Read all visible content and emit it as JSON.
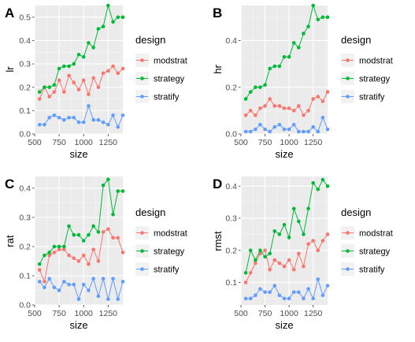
{
  "chart_data": [
    {
      "type": "line",
      "panel_label": "A",
      "xlabel": "size",
      "ylabel": "lr",
      "xlim": [
        500,
        1400
      ],
      "ylim": [
        0,
        0.55
      ],
      "xticks": [
        500,
        750,
        1000,
        1250
      ],
      "xtick_labels": [
        "500",
        "750",
        "1000",
        "1250"
      ],
      "yticks": [
        0.0,
        0.1,
        0.2,
        0.3,
        0.4,
        0.5
      ],
      "ytick_labels": [
        "0.0",
        "0.1",
        "0.2",
        "0.3",
        "0.4",
        "0.5"
      ],
      "x": [
        550,
        600,
        650,
        700,
        750,
        800,
        850,
        900,
        950,
        1000,
        1050,
        1100,
        1150,
        1200,
        1250,
        1300,
        1350,
        1400
      ],
      "series": [
        {
          "name": "modstrat",
          "color": "#F8766D",
          "values": [
            0.15,
            0.2,
            0.16,
            0.18,
            0.23,
            0.18,
            0.25,
            0.22,
            0.19,
            0.23,
            0.17,
            0.24,
            0.2,
            0.26,
            0.27,
            0.29,
            0.26,
            0.28
          ]
        },
        {
          "name": "strategy",
          "color": "#00BA38",
          "values": [
            0.18,
            0.2,
            0.2,
            0.21,
            0.28,
            0.29,
            0.29,
            0.3,
            0.34,
            0.33,
            0.39,
            0.37,
            0.45,
            0.46,
            0.55,
            0.48,
            0.5,
            0.5
          ]
        },
        {
          "name": "stratify",
          "color": "#619CFF",
          "values": [
            0.04,
            0.04,
            0.07,
            0.08,
            0.07,
            0.06,
            0.07,
            0.07,
            0.05,
            0.05,
            0.12,
            0.06,
            0.06,
            0.05,
            0.04,
            0.08,
            0.03,
            0.08
          ]
        }
      ],
      "legend": {
        "title": "design",
        "position": "right"
      }
    },
    {
      "type": "line",
      "panel_label": "B",
      "xlabel": "size",
      "ylabel": "hr",
      "xlim": [
        500,
        1400
      ],
      "ylim": [
        0,
        0.55
      ],
      "xticks": [
        500,
        750,
        1000,
        1250
      ],
      "xtick_labels": [
        "500",
        "750",
        "1000",
        "1250"
      ],
      "yticks": [
        0.0,
        0.2,
        0.4
      ],
      "ytick_labels": [
        "0.0",
        "0.2",
        "0.4"
      ],
      "x": [
        550,
        600,
        650,
        700,
        750,
        800,
        850,
        900,
        950,
        1000,
        1050,
        1100,
        1150,
        1200,
        1250,
        1300,
        1350,
        1400
      ],
      "series": [
        {
          "name": "modstrat",
          "color": "#F8766D",
          "values": [
            0.08,
            0.1,
            0.08,
            0.11,
            0.12,
            0.15,
            0.12,
            0.12,
            0.11,
            0.11,
            0.1,
            0.12,
            0.08,
            0.1,
            0.15,
            0.16,
            0.14,
            0.18
          ]
        },
        {
          "name": "strategy",
          "color": "#00BA38",
          "values": [
            0.15,
            0.18,
            0.2,
            0.2,
            0.21,
            0.28,
            0.29,
            0.29,
            0.33,
            0.33,
            0.39,
            0.37,
            0.43,
            0.46,
            0.55,
            0.49,
            0.5,
            0.5
          ]
        },
        {
          "name": "stratify",
          "color": "#619CFF",
          "values": [
            0.01,
            0.01,
            0.02,
            0.04,
            0.02,
            0.01,
            0.03,
            0.04,
            0.02,
            0.02,
            0.04,
            0.01,
            0.01,
            0.01,
            0.03,
            0.01,
            0.07,
            0.02
          ]
        }
      ],
      "legend": {
        "title": "design",
        "position": "right"
      }
    },
    {
      "type": "line",
      "panel_label": "C",
      "xlabel": "size",
      "ylabel": "rat",
      "xlim": [
        500,
        1400
      ],
      "ylim": [
        0,
        0.44
      ],
      "xticks": [
        500,
        750,
        1000,
        1250
      ],
      "xtick_labels": [
        "500",
        "750",
        "1000",
        "1250"
      ],
      "yticks": [
        0.0,
        0.1,
        0.2,
        0.3,
        0.4
      ],
      "ytick_labels": [
        "0.0",
        "0.1",
        "0.2",
        "0.3",
        "0.4"
      ],
      "x": [
        550,
        600,
        650,
        700,
        750,
        800,
        850,
        900,
        950,
        1000,
        1050,
        1100,
        1150,
        1200,
        1250,
        1300,
        1350,
        1400
      ],
      "series": [
        {
          "name": "modstrat",
          "color": "#F8766D",
          "values": [
            0.12,
            0.08,
            0.17,
            0.18,
            0.19,
            0.19,
            0.17,
            0.16,
            0.15,
            0.17,
            0.14,
            0.19,
            0.15,
            0.25,
            0.26,
            0.23,
            0.23,
            0.18
          ]
        },
        {
          "name": "strategy",
          "color": "#00BA38",
          "values": [
            0.14,
            0.17,
            0.18,
            0.2,
            0.2,
            0.2,
            0.27,
            0.24,
            0.24,
            0.22,
            0.24,
            0.27,
            0.25,
            0.41,
            0.43,
            0.31,
            0.39,
            0.39
          ]
        },
        {
          "name": "stratify",
          "color": "#619CFF",
          "values": [
            0.08,
            0.06,
            0.09,
            0.06,
            0.05,
            0.08,
            0.07,
            0.07,
            0.02,
            0.07,
            0.05,
            0.09,
            0.03,
            0.09,
            0.02,
            0.09,
            0.02,
            0.08
          ]
        }
      ],
      "legend": {
        "title": "design",
        "position": "right"
      }
    },
    {
      "type": "line",
      "panel_label": "D",
      "xlabel": "size",
      "ylabel": "rmst",
      "xlim": [
        500,
        1400
      ],
      "ylim": [
        0.03,
        0.43
      ],
      "xticks": [
        500,
        750,
        1000,
        1250
      ],
      "xtick_labels": [
        "500",
        "750",
        "1000",
        "1250"
      ],
      "yticks": [
        0.1,
        0.2,
        0.3,
        0.4
      ],
      "ytick_labels": [
        "0.1",
        "0.2",
        "0.3",
        "0.4"
      ],
      "x": [
        550,
        600,
        650,
        700,
        750,
        800,
        850,
        900,
        950,
        1000,
        1050,
        1100,
        1150,
        1200,
        1250,
        1300,
        1350,
        1400
      ],
      "series": [
        {
          "name": "modstrat",
          "color": "#F8766D",
          "values": [
            0.1,
            0.13,
            0.16,
            0.19,
            0.2,
            0.14,
            0.17,
            0.16,
            0.15,
            0.17,
            0.14,
            0.19,
            0.15,
            0.22,
            0.23,
            0.2,
            0.23,
            0.25
          ]
        },
        {
          "name": "strategy",
          "color": "#00BA38",
          "values": [
            0.13,
            0.2,
            0.17,
            0.2,
            0.18,
            0.19,
            0.26,
            0.25,
            0.28,
            0.24,
            0.33,
            0.29,
            0.25,
            0.33,
            0.41,
            0.39,
            0.42,
            0.4
          ]
        },
        {
          "name": "stratify",
          "color": "#619CFF",
          "values": [
            0.05,
            0.05,
            0.06,
            0.08,
            0.07,
            0.07,
            0.09,
            0.06,
            0.05,
            0.05,
            0.07,
            0.07,
            0.05,
            0.08,
            0.05,
            0.11,
            0.06,
            0.09
          ]
        }
      ],
      "legend": {
        "title": "design",
        "position": "right"
      }
    }
  ]
}
